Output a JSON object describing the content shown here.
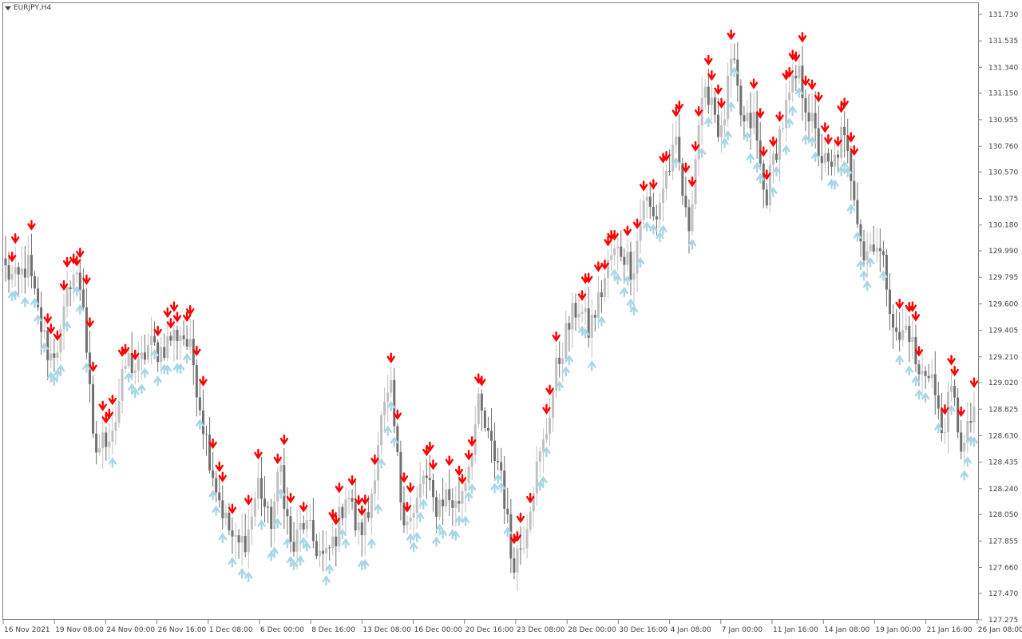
{
  "window": {
    "symbol_label": "EURJPY,H4"
  },
  "colors": {
    "bull": "#c0c0c0",
    "bear": "#707070",
    "up_arrow": "#a9d6e5",
    "down_arrow": "#ff0000",
    "axis": "#808080",
    "text": "#404040"
  },
  "chart_data": {
    "type": "candlestick",
    "title": "EURJPY,H4",
    "y_ticks": [
      "131.730",
      "131.535",
      "131.340",
      "131.150",
      "130.955",
      "130.760",
      "130.570",
      "130.375",
      "130.180",
      "129.990",
      "129.795",
      "129.600",
      "129.405",
      "129.210",
      "129.020",
      "128.825",
      "128.630",
      "128.435",
      "128.240",
      "128.050",
      "127.855",
      "127.660",
      "127.470",
      "127.275"
    ],
    "ylim": [
      127.275,
      131.73
    ],
    "x_ticks": [
      "16 Nov 2021",
      "19 Nov 08:00",
      "24 Nov 00:00",
      "26 Nov 16:00",
      "1 Dec 08:00",
      "6 Dec 00:00",
      "8 Dec 16:00",
      "13 Dec 08:00",
      "16 Dec 00:00",
      "20 Dec 16:00",
      "23 Dec 08:00",
      "28 Dec 00:00",
      "30 Dec 16:00",
      "4 Jan 08:00",
      "7 Jan 00:00",
      "11 Jan 16:00",
      "14 Jan 08:00",
      "19 Jan 00:00",
      "21 Jan 16:00",
      "26 Jan 08:00"
    ],
    "close_path": [
      129.85,
      129.75,
      129.9,
      129.5,
      129.2,
      129.35,
      129.85,
      129.7,
      128.5,
      128.6,
      128.75,
      129.2,
      129.1,
      129.3,
      129.25,
      129.35,
      129.4,
      129.2,
      128.7,
      128.3,
      128.0,
      127.8,
      127.9,
      128.3,
      127.95,
      128.4,
      127.75,
      128.0,
      127.85,
      127.7,
      127.9,
      128.25,
      127.9,
      128.05,
      128.7,
      128.95,
      128.1,
      128.0,
      128.35,
      128.1,
      128.2,
      128.1,
      128.4,
      128.85,
      128.55,
      128.4,
      127.7,
      127.85,
      128.3,
      128.6,
      129.1,
      129.4,
      129.6,
      129.4,
      129.65,
      129.95,
      130.0,
      129.85,
      130.4,
      130.2,
      130.55,
      130.75,
      130.1,
      130.95,
      131.2,
      130.8,
      131.4,
      130.9,
      130.95,
      130.35,
      130.75,
      131.05,
      131.3,
      131.0,
      130.7,
      130.55,
      130.85,
      130.5,
      129.95,
      130.1,
      129.8,
      129.3,
      129.45,
      129.05,
      129.15,
      128.65,
      128.95,
      128.5,
      128.85
    ]
  }
}
